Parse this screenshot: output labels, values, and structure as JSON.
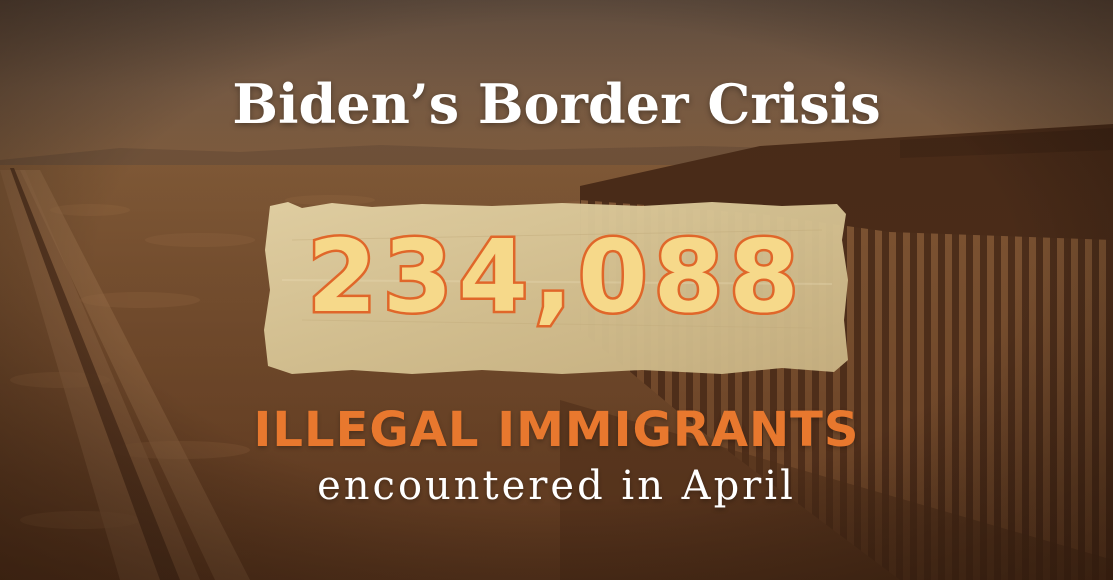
{
  "title": "Biden’s Border Crisis",
  "stat": {
    "number": "234,088",
    "label": "ILLEGAL IMMIGRANTS",
    "sublabel": "encountered in April"
  },
  "colors": {
    "number_fill": "#f6d98a",
    "number_outline": "#e0672a",
    "label": "#e8782e",
    "text": "#ffffff",
    "tape": "#d9c79c",
    "overlay": "#6b4124"
  },
  "background": {
    "description_icon": "border-fence-desert-photo"
  }
}
